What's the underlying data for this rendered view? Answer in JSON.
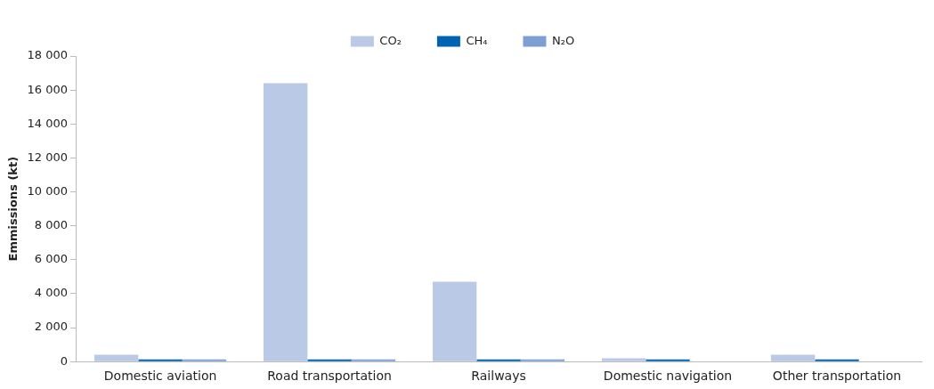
{
  "chart_data": {
    "type": "bar",
    "ylabel": "Emmissions (kt)",
    "categories": [
      "Domestic aviation",
      "Road transportation",
      "Railways",
      "Domestic navigation",
      "Other transportation"
    ],
    "series": [
      {
        "name": "CO₂",
        "color": "#b9c9e6",
        "values": [
          400,
          16400,
          4700,
          200,
          400
        ]
      },
      {
        "name": "CH₄",
        "color": "#0063b1",
        "values": [
          130,
          130,
          130,
          130,
          130
        ]
      },
      {
        "name": "N₂O",
        "color": "#7d9fd3",
        "values": [
          130,
          130,
          130,
          0,
          0
        ]
      }
    ],
    "ylim": [
      0,
      18000
    ],
    "yticks": [
      {
        "value": 0,
        "label": "0"
      },
      {
        "value": 2000,
        "label": "2 000"
      },
      {
        "value": 4000,
        "label": "4 000"
      },
      {
        "value": 6000,
        "label": "6 000"
      },
      {
        "value": 8000,
        "label": "8 000"
      },
      {
        "value": 10000,
        "label": "10 000"
      },
      {
        "value": 12000,
        "label": "12 000"
      },
      {
        "value": 14000,
        "label": "14 000"
      },
      {
        "value": 16000,
        "label": "16 000"
      },
      {
        "value": 18000,
        "label": "18 000"
      }
    ],
    "grid": false,
    "legend": "top"
  }
}
